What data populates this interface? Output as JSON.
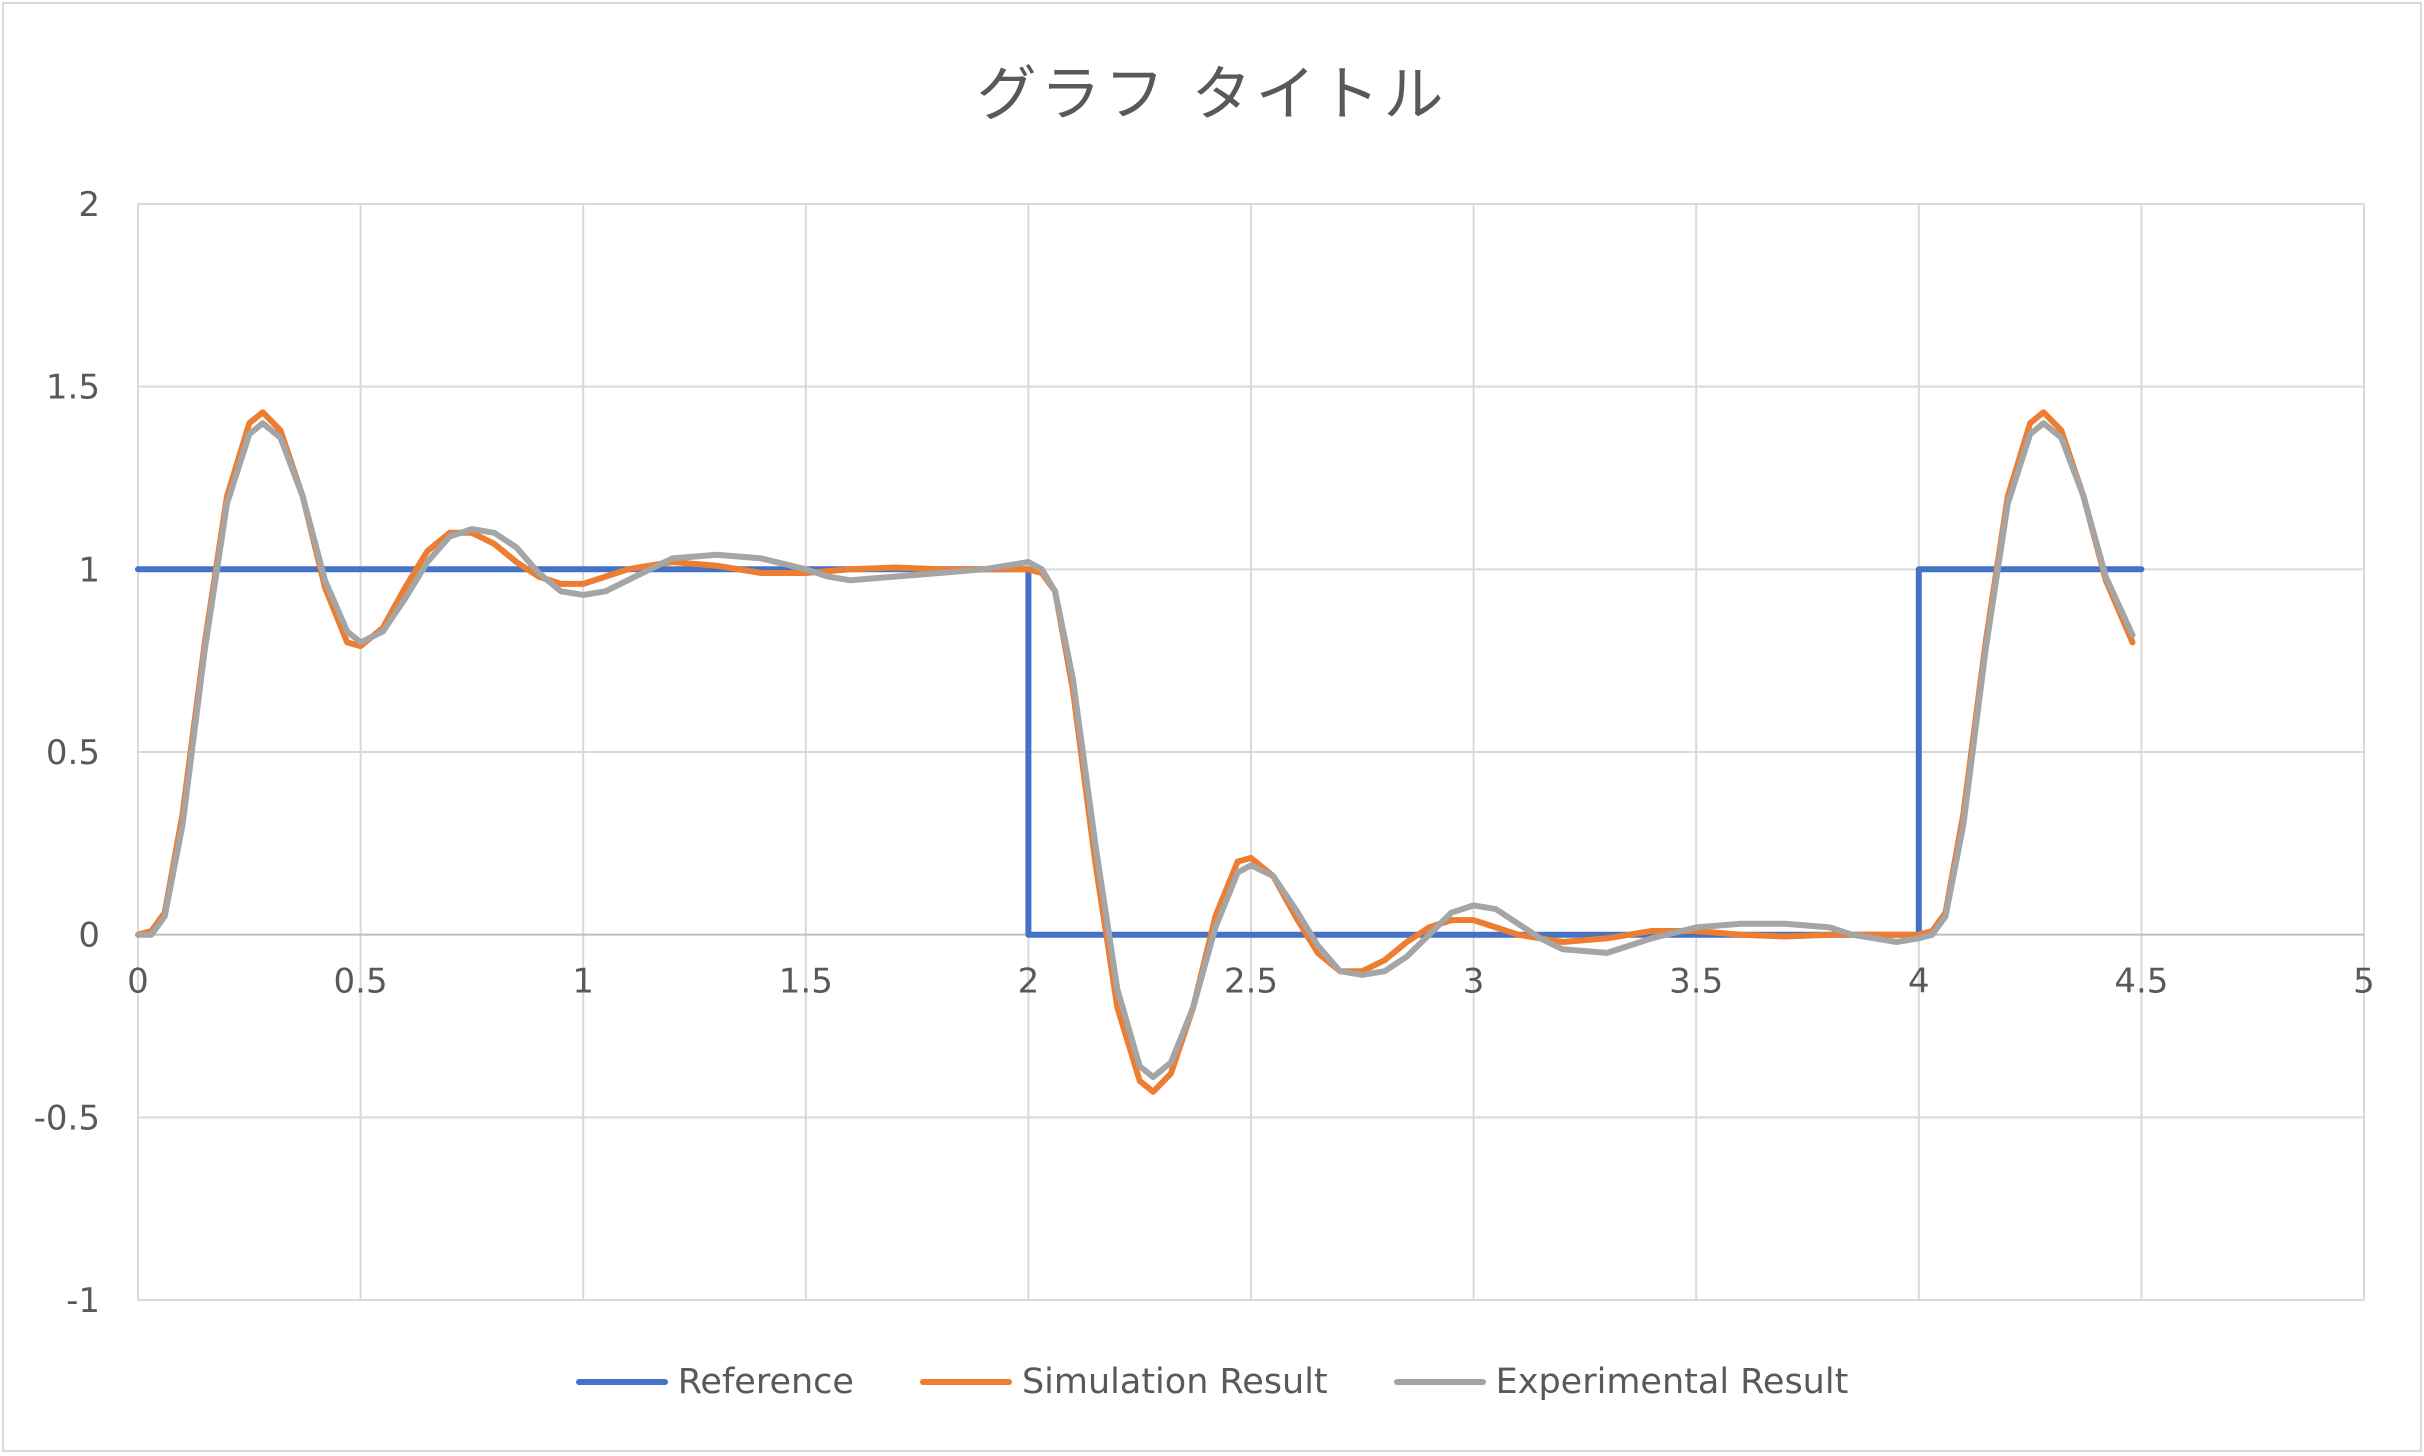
{
  "chart_data": {
    "type": "line",
    "title": "グラフ タイトル",
    "xlim": [
      0,
      5
    ],
    "ylim": [
      -1,
      2
    ],
    "x_ticks": [
      "0",
      "0.5",
      "1",
      "1.5",
      "2",
      "2.5",
      "3",
      "3.5",
      "4",
      "4.5",
      "5"
    ],
    "y_ticks": [
      "2",
      "1.5",
      "1",
      "0.5",
      "0",
      "-0.5",
      "-1"
    ],
    "grid": true,
    "legend_position": "bottom",
    "series": [
      {
        "name": "Reference",
        "color": "#4472C4",
        "points": [
          [
            0,
            1
          ],
          [
            2,
            1
          ],
          [
            2,
            0
          ],
          [
            4,
            0
          ],
          [
            4,
            1
          ],
          [
            4.5,
            1
          ]
        ]
      },
      {
        "name": "Simulation Result",
        "color": "#ED7D31",
        "points": [
          [
            0,
            0
          ],
          [
            0.03,
            0.01
          ],
          [
            0.06,
            0.06
          ],
          [
            0.1,
            0.33
          ],
          [
            0.15,
            0.8
          ],
          [
            0.2,
            1.2
          ],
          [
            0.25,
            1.4
          ],
          [
            0.28,
            1.43
          ],
          [
            0.32,
            1.38
          ],
          [
            0.37,
            1.2
          ],
          [
            0.42,
            0.95
          ],
          [
            0.47,
            0.8
          ],
          [
            0.5,
            0.79
          ],
          [
            0.55,
            0.84
          ],
          [
            0.6,
            0.95
          ],
          [
            0.65,
            1.05
          ],
          [
            0.7,
            1.1
          ],
          [
            0.75,
            1.1
          ],
          [
            0.8,
            1.07
          ],
          [
            0.85,
            1.02
          ],
          [
            0.9,
            0.98
          ],
          [
            0.95,
            0.96
          ],
          [
            1.0,
            0.96
          ],
          [
            1.05,
            0.98
          ],
          [
            1.1,
            1.0
          ],
          [
            1.2,
            1.02
          ],
          [
            1.3,
            1.01
          ],
          [
            1.4,
            0.99
          ],
          [
            1.5,
            0.99
          ],
          [
            1.6,
            1.0
          ],
          [
            1.7,
            1.005
          ],
          [
            1.8,
            1.0
          ],
          [
            1.9,
            1.0
          ],
          [
            2.0,
            1.0
          ],
          [
            2.03,
            0.99
          ],
          [
            2.06,
            0.94
          ],
          [
            2.1,
            0.67
          ],
          [
            2.15,
            0.2
          ],
          [
            2.2,
            -0.2
          ],
          [
            2.25,
            -0.4
          ],
          [
            2.28,
            -0.43
          ],
          [
            2.32,
            -0.38
          ],
          [
            2.37,
            -0.2
          ],
          [
            2.42,
            0.05
          ],
          [
            2.47,
            0.2
          ],
          [
            2.5,
            0.21
          ],
          [
            2.55,
            0.16
          ],
          [
            2.6,
            0.05
          ],
          [
            2.65,
            -0.05
          ],
          [
            2.7,
            -0.1
          ],
          [
            2.75,
            -0.1
          ],
          [
            2.8,
            -0.07
          ],
          [
            2.85,
            -0.02
          ],
          [
            2.9,
            0.02
          ],
          [
            2.95,
            0.04
          ],
          [
            3.0,
            0.04
          ],
          [
            3.05,
            0.02
          ],
          [
            3.1,
            0.0
          ],
          [
            3.2,
            -0.02
          ],
          [
            3.3,
            -0.01
          ],
          [
            3.4,
            0.01
          ],
          [
            3.5,
            0.01
          ],
          [
            3.6,
            0.0
          ],
          [
            3.7,
            -0.005
          ],
          [
            3.8,
            0.0
          ],
          [
            3.9,
            0.0
          ],
          [
            4.0,
            0.0
          ],
          [
            4.03,
            0.01
          ],
          [
            4.06,
            0.06
          ],
          [
            4.1,
            0.33
          ],
          [
            4.15,
            0.8
          ],
          [
            4.2,
            1.2
          ],
          [
            4.25,
            1.4
          ],
          [
            4.28,
            1.43
          ],
          [
            4.32,
            1.38
          ],
          [
            4.37,
            1.2
          ],
          [
            4.42,
            0.97
          ],
          [
            4.48,
            0.8
          ]
        ]
      },
      {
        "name": "Experimental Result",
        "color": "#A5A5A5",
        "points": [
          [
            0,
            0
          ],
          [
            0.03,
            0.0
          ],
          [
            0.06,
            0.05
          ],
          [
            0.1,
            0.3
          ],
          [
            0.15,
            0.78
          ],
          [
            0.2,
            1.18
          ],
          [
            0.25,
            1.37
          ],
          [
            0.28,
            1.4
          ],
          [
            0.32,
            1.36
          ],
          [
            0.37,
            1.2
          ],
          [
            0.42,
            0.97
          ],
          [
            0.47,
            0.83
          ],
          [
            0.5,
            0.8
          ],
          [
            0.55,
            0.83
          ],
          [
            0.6,
            0.92
          ],
          [
            0.65,
            1.02
          ],
          [
            0.7,
            1.09
          ],
          [
            0.75,
            1.11
          ],
          [
            0.8,
            1.1
          ],
          [
            0.85,
            1.06
          ],
          [
            0.9,
            0.99
          ],
          [
            0.95,
            0.94
          ],
          [
            1.0,
            0.93
          ],
          [
            1.05,
            0.94
          ],
          [
            1.1,
            0.97
          ],
          [
            1.15,
            1.0
          ],
          [
            1.2,
            1.03
          ],
          [
            1.3,
            1.04
          ],
          [
            1.4,
            1.03
          ],
          [
            1.5,
            1.0
          ],
          [
            1.55,
            0.98
          ],
          [
            1.6,
            0.97
          ],
          [
            1.7,
            0.98
          ],
          [
            1.8,
            0.99
          ],
          [
            1.9,
            1.0
          ],
          [
            1.95,
            1.01
          ],
          [
            2.0,
            1.02
          ],
          [
            2.03,
            1.0
          ],
          [
            2.06,
            0.94
          ],
          [
            2.1,
            0.7
          ],
          [
            2.15,
            0.25
          ],
          [
            2.2,
            -0.15
          ],
          [
            2.25,
            -0.36
          ],
          [
            2.28,
            -0.39
          ],
          [
            2.32,
            -0.35
          ],
          [
            2.37,
            -0.2
          ],
          [
            2.42,
            0.02
          ],
          [
            2.47,
            0.17
          ],
          [
            2.5,
            0.19
          ],
          [
            2.55,
            0.16
          ],
          [
            2.6,
            0.07
          ],
          [
            2.65,
            -0.03
          ],
          [
            2.7,
            -0.1
          ],
          [
            2.75,
            -0.11
          ],
          [
            2.8,
            -0.1
          ],
          [
            2.85,
            -0.06
          ],
          [
            2.9,
            0.0
          ],
          [
            2.95,
            0.06
          ],
          [
            3.0,
            0.08
          ],
          [
            3.05,
            0.07
          ],
          [
            3.1,
            0.03
          ],
          [
            3.15,
            -0.01
          ],
          [
            3.2,
            -0.04
          ],
          [
            3.3,
            -0.05
          ],
          [
            3.4,
            -0.01
          ],
          [
            3.5,
            0.02
          ],
          [
            3.6,
            0.03
          ],
          [
            3.7,
            0.03
          ],
          [
            3.8,
            0.02
          ],
          [
            3.85,
            0.0
          ],
          [
            3.9,
            -0.01
          ],
          [
            3.95,
            -0.02
          ],
          [
            4.0,
            -0.01
          ],
          [
            4.03,
            0.0
          ],
          [
            4.06,
            0.05
          ],
          [
            4.1,
            0.3
          ],
          [
            4.15,
            0.78
          ],
          [
            4.2,
            1.18
          ],
          [
            4.25,
            1.37
          ],
          [
            4.28,
            1.4
          ],
          [
            4.32,
            1.36
          ],
          [
            4.37,
            1.2
          ],
          [
            4.42,
            0.98
          ],
          [
            4.48,
            0.82
          ]
        ]
      }
    ]
  }
}
